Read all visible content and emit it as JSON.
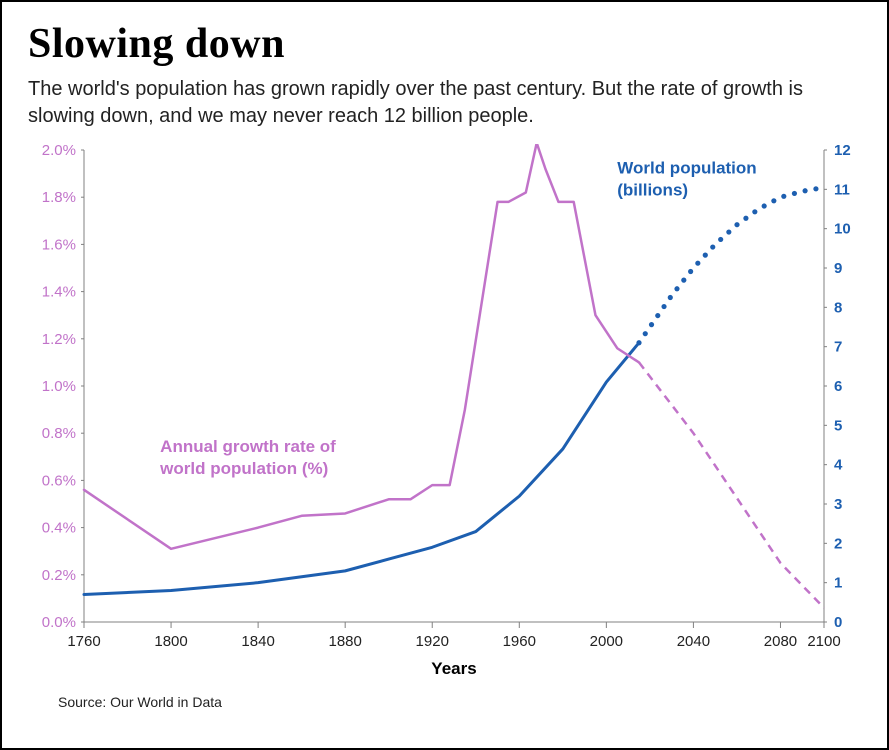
{
  "title": "Slowing down",
  "subtitle": "The world's population has grown rapidly over the past century. But the rate of growth is slowing down, and we may never reach 12 billion people.",
  "source": "Source: Our World in Data",
  "chart": {
    "type": "dual-axis-line",
    "background_color": "#ffffff",
    "axis_color": "#808080",
    "tick_label_color": "#222222",
    "tick_fontsize": 15,
    "xaxis": {
      "label": "Years",
      "label_fontsize": 17,
      "label_weight": 700,
      "label_color": "#000000",
      "min": 1760,
      "max": 2100,
      "ticks": [
        1760,
        1800,
        1840,
        1880,
        1920,
        1960,
        2000,
        2040,
        2080,
        2100
      ]
    },
    "y_left": {
      "min": 0.0,
      "max": 2.0,
      "tick_step": 0.2,
      "suffix": "%",
      "color": "#c173c9",
      "fontsize": 15
    },
    "y_right": {
      "min": 0,
      "max": 12,
      "tick_step": 1,
      "color": "#1d5fb0",
      "fontsize": 15,
      "weight": 700
    },
    "series": {
      "growth_rate": {
        "axis": "left",
        "color": "#c173c9",
        "stroke_width": 2.5,
        "label_text": "Annual growth rate of world population (%)",
        "label_fontsize": 17,
        "label_weight": 700,
        "label_color": "#c173c9",
        "label_pos": {
          "x": 1795,
          "y_pct": 0.72
        },
        "solid_points": [
          {
            "x": 1760,
            "y": 0.56
          },
          {
            "x": 1800,
            "y": 0.31
          },
          {
            "x": 1840,
            "y": 0.4
          },
          {
            "x": 1860,
            "y": 0.45
          },
          {
            "x": 1880,
            "y": 0.46
          },
          {
            "x": 1900,
            "y": 0.52
          },
          {
            "x": 1910,
            "y": 0.52
          },
          {
            "x": 1920,
            "y": 0.58
          },
          {
            "x": 1928,
            "y": 0.58
          },
          {
            "x": 1935,
            "y": 0.9
          },
          {
            "x": 1950,
            "y": 1.78
          },
          {
            "x": 1955,
            "y": 1.78
          },
          {
            "x": 1963,
            "y": 1.82
          },
          {
            "x": 1968,
            "y": 2.03
          },
          {
            "x": 1972,
            "y": 1.92
          },
          {
            "x": 1978,
            "y": 1.78
          },
          {
            "x": 1985,
            "y": 1.78
          },
          {
            "x": 1995,
            "y": 1.3
          },
          {
            "x": 2005,
            "y": 1.16
          },
          {
            "x": 2015,
            "y": 1.1
          }
        ],
        "dashed_points": [
          {
            "x": 2015,
            "y": 1.1
          },
          {
            "x": 2040,
            "y": 0.8
          },
          {
            "x": 2080,
            "y": 0.25
          },
          {
            "x": 2100,
            "y": 0.06
          }
        ],
        "dash_pattern": "8 6"
      },
      "population": {
        "axis": "right",
        "color": "#1d5fb0",
        "stroke_width": 3,
        "label_text": "World population (billions)",
        "label_fontsize": 17,
        "label_weight": 700,
        "label_color": "#1d5fb0",
        "label_pos": {
          "x": 2005,
          "y_val": 11.4
        },
        "solid_points": [
          {
            "x": 1760,
            "y": 0.7
          },
          {
            "x": 1800,
            "y": 0.8
          },
          {
            "x": 1840,
            "y": 1.0
          },
          {
            "x": 1880,
            "y": 1.3
          },
          {
            "x": 1900,
            "y": 1.6
          },
          {
            "x": 1920,
            "y": 1.9
          },
          {
            "x": 1940,
            "y": 2.3
          },
          {
            "x": 1960,
            "y": 3.2
          },
          {
            "x": 1980,
            "y": 4.4
          },
          {
            "x": 2000,
            "y": 6.1
          },
          {
            "x": 2015,
            "y": 7.1
          }
        ],
        "dotted_points": [
          {
            "x": 2015,
            "y": 7.1
          },
          {
            "x": 2020,
            "y": 7.5
          },
          {
            "x": 2030,
            "y": 8.3
          },
          {
            "x": 2040,
            "y": 9.0
          },
          {
            "x": 2050,
            "y": 9.6
          },
          {
            "x": 2060,
            "y": 10.1
          },
          {
            "x": 2070,
            "y": 10.5
          },
          {
            "x": 2080,
            "y": 10.8
          },
          {
            "x": 2090,
            "y": 10.95
          },
          {
            "x": 2100,
            "y": 11.05
          }
        ],
        "dot_radius": 2.6,
        "dot_spacing_px": 11
      }
    }
  }
}
